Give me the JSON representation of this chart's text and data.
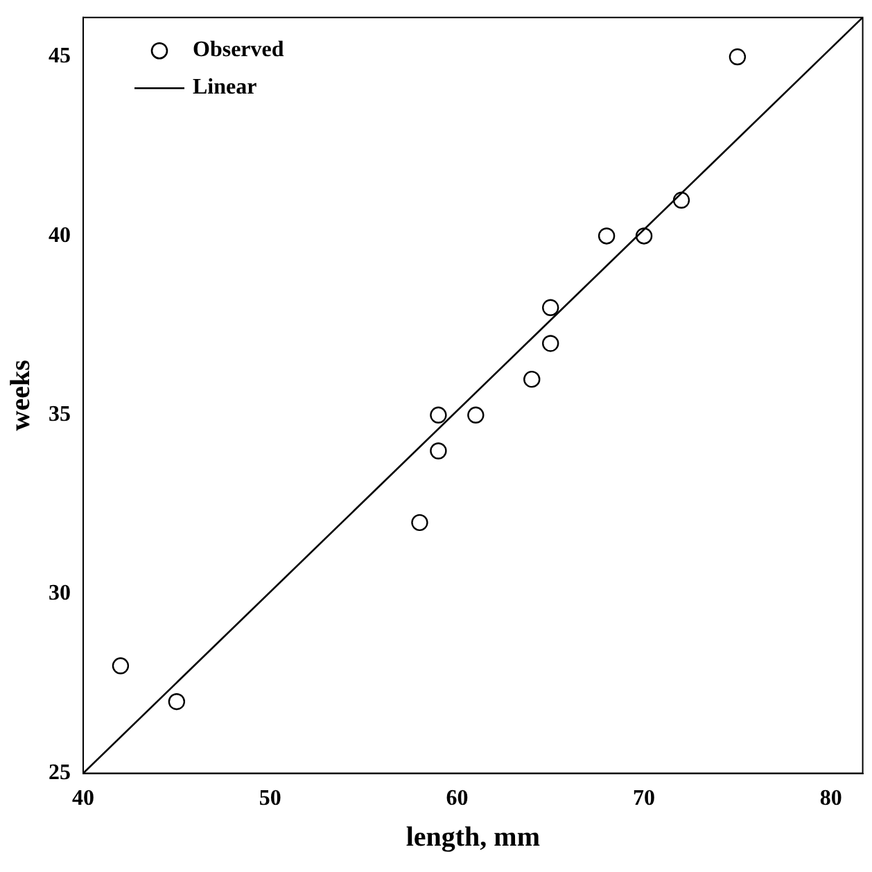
{
  "chart_data": {
    "type": "scatter",
    "xlabel": "length, mm",
    "ylabel": "weeks",
    "xlim": [
      40,
      81.7
    ],
    "ylim": [
      25,
      46.1
    ],
    "xticks": [
      40,
      50,
      60,
      70,
      80
    ],
    "yticks": [
      25,
      30,
      35,
      40,
      45
    ],
    "grid": false,
    "legend": "top left",
    "marker": "circle",
    "series": [
      {
        "name": "Observed",
        "color": "#000000",
        "x": [
          42,
          45,
          58,
          59,
          59,
          61,
          64,
          65,
          65,
          68,
          70,
          72,
          75
        ],
        "values": [
          28,
          27,
          32,
          34,
          35,
          35,
          36,
          37,
          38,
          40,
          40,
          41,
          45
        ]
      },
      {
        "name": "Linear",
        "type": "line",
        "color": "#000000",
        "marker": "none",
        "line_style": "solid",
        "x": [
          40,
          81.7
        ],
        "values": [
          25,
          46.1
        ]
      }
    ]
  }
}
